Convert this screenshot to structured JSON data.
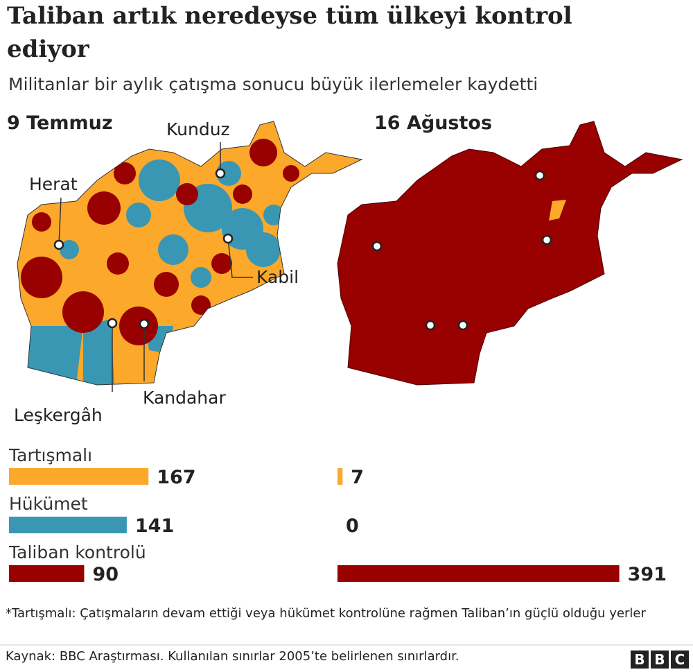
{
  "title": "Taliban artık neredeyse tüm ülkeyi kontrol ediyor",
  "subtitle": "Militanlar bir aylık çatışma sonucu büyük ilerlemeler kaydetti",
  "map_labels": [
    "Herat",
    "Kunduz",
    "Kabil",
    "Leşkergâh",
    "Kandahar"
  ],
  "chart_data": {
    "type": "bar",
    "categories": [
      "Tartışmalı",
      "Hükümet",
      "Taliban kontrolü"
    ],
    "colors": [
      "#fca82a",
      "#3a97b3",
      "#990000"
    ],
    "series": [
      {
        "name": "9 Temmuz",
        "values": [
          167,
          141,
          90
        ]
      },
      {
        "name": "16 Ağustos",
        "values": [
          7,
          0,
          391
        ]
      }
    ]
  },
  "note": "*Tartışmalı: Çatışmaların devam ettiği veya hükümet kontrolüne rağmen Taliban’ın güçlü olduğu yerler",
  "source": "Kaynak: BBC Araştırması. Kullanılan sınırlar 2005’te belirlenen sınırlardır.",
  "logo": "BBC"
}
